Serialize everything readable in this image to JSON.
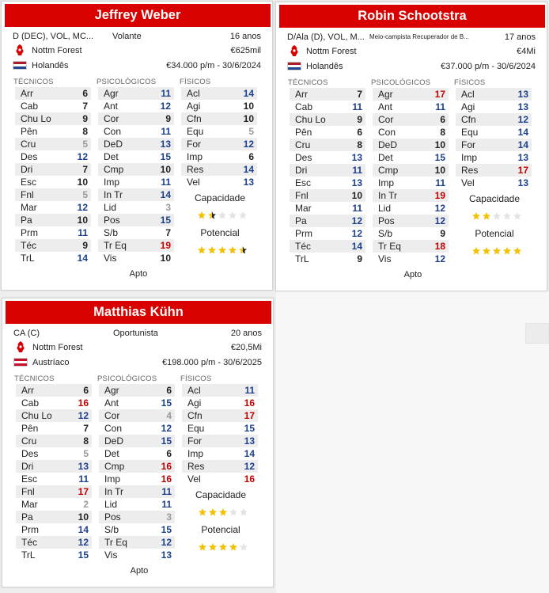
{
  "players": [
    {
      "name": "Jeffrey Weber",
      "positions": "D (DEC), VOL, MC...",
      "role": "Volante",
      "age": "16 anos",
      "club": "Nottm Forest",
      "value": "€625mil",
      "nationality": "Holandês",
      "flag": "nl",
      "contract": "€34.000 p/m - 30/6/2024",
      "group_labels": [
        "TÉCNICOS",
        "PSICOLÓGICOS",
        "FÍSICOS"
      ],
      "technical": [
        [
          "Arr",
          "6",
          "k"
        ],
        [
          "Cab",
          "7",
          "k"
        ],
        [
          "Chu Lo",
          "9",
          "k"
        ],
        [
          "Pên",
          "8",
          "k"
        ],
        [
          "Cru",
          "5",
          "g"
        ],
        [
          "Des",
          "12",
          "b"
        ],
        [
          "Dri",
          "7",
          "k"
        ],
        [
          "Esc",
          "10",
          "k"
        ],
        [
          "Fnl",
          "5",
          "g"
        ],
        [
          "Mar",
          "12",
          "b"
        ],
        [
          "Pa",
          "10",
          "k"
        ],
        [
          "Prm",
          "11",
          "b"
        ],
        [
          "Téc",
          "9",
          "k"
        ],
        [
          "TrL",
          "14",
          "b"
        ]
      ],
      "mental": [
        [
          "Agr",
          "11",
          "b"
        ],
        [
          "Ant",
          "12",
          "b"
        ],
        [
          "Cor",
          "9",
          "k"
        ],
        [
          "Con",
          "11",
          "b"
        ],
        [
          "DeD",
          "13",
          "b"
        ],
        [
          "Det",
          "15",
          "b"
        ],
        [
          "Cmp",
          "10",
          "k"
        ],
        [
          "Imp",
          "11",
          "b"
        ],
        [
          "In Tr",
          "14",
          "b"
        ],
        [
          "Lid",
          "3",
          "g"
        ],
        [
          "Pos",
          "15",
          "b"
        ],
        [
          "S/b",
          "7",
          "k"
        ],
        [
          "Tr Eq",
          "19",
          "r"
        ],
        [
          "Vis",
          "10",
          "k"
        ]
      ],
      "physical": [
        [
          "Acl",
          "14",
          "b"
        ],
        [
          "Agi",
          "10",
          "k"
        ],
        [
          "Cfn",
          "10",
          "k"
        ],
        [
          "Equ",
          "5",
          "g"
        ],
        [
          "For",
          "12",
          "b"
        ],
        [
          "Imp",
          "6",
          "k"
        ],
        [
          "Res",
          "14",
          "b"
        ],
        [
          "Vel",
          "13",
          "b"
        ]
      ],
      "ability_label": "Capacidade",
      "ability_stars": 1.5,
      "potential_label": "Potencial",
      "potential_stars": 4.5,
      "fitness": "Apto"
    },
    {
      "name": "Robin Schootstra",
      "positions": "D/Ala (D), VOL, M...",
      "role": "Meio-campista Recuperador de B...",
      "age": "17 anos",
      "club": "Nottm Forest",
      "value": "€4Mi",
      "nationality": "Holandês",
      "flag": "nl",
      "contract": "€37.000 p/m - 30/6/2024",
      "group_labels": [
        "TÉCNICOS",
        "PSICOLÓGICOS",
        "FÍSICOS"
      ],
      "technical": [
        [
          "Arr",
          "7",
          "k"
        ],
        [
          "Cab",
          "11",
          "b"
        ],
        [
          "Chu Lo",
          "9",
          "k"
        ],
        [
          "Pên",
          "6",
          "k"
        ],
        [
          "Cru",
          "8",
          "k"
        ],
        [
          "Des",
          "13",
          "b"
        ],
        [
          "Dri",
          "11",
          "b"
        ],
        [
          "Esc",
          "13",
          "b"
        ],
        [
          "Fnl",
          "10",
          "k"
        ],
        [
          "Mar",
          "11",
          "b"
        ],
        [
          "Pa",
          "12",
          "b"
        ],
        [
          "Prm",
          "12",
          "b"
        ],
        [
          "Téc",
          "14",
          "b"
        ],
        [
          "TrL",
          "9",
          "k"
        ]
      ],
      "mental": [
        [
          "Agr",
          "17",
          "r"
        ],
        [
          "Ant",
          "11",
          "b"
        ],
        [
          "Cor",
          "6",
          "k"
        ],
        [
          "Con",
          "8",
          "k"
        ],
        [
          "DeD",
          "10",
          "k"
        ],
        [
          "Det",
          "15",
          "b"
        ],
        [
          "Cmp",
          "10",
          "k"
        ],
        [
          "Imp",
          "11",
          "b"
        ],
        [
          "In Tr",
          "19",
          "r"
        ],
        [
          "Lid",
          "12",
          "b"
        ],
        [
          "Pos",
          "12",
          "b"
        ],
        [
          "S/b",
          "9",
          "k"
        ],
        [
          "Tr Eq",
          "18",
          "r"
        ],
        [
          "Vis",
          "12",
          "b"
        ]
      ],
      "physical": [
        [
          "Acl",
          "13",
          "b"
        ],
        [
          "Agi",
          "13",
          "b"
        ],
        [
          "Cfn",
          "12",
          "b"
        ],
        [
          "Equ",
          "14",
          "b"
        ],
        [
          "For",
          "14",
          "b"
        ],
        [
          "Imp",
          "13",
          "b"
        ],
        [
          "Res",
          "17",
          "r"
        ],
        [
          "Vel",
          "13",
          "b"
        ]
      ],
      "ability_label": "Capacidade",
      "ability_stars": 2,
      "potential_label": "Potencial",
      "potential_stars": 5,
      "fitness": "Apto"
    },
    {
      "name": "Matthias Kühn",
      "positions": "CA (C)",
      "role": "Oportunista",
      "age": "20 anos",
      "club": "Nottm Forest",
      "value": "€20,5Mi",
      "nationality": "Austríaco",
      "flag": "at",
      "contract": "€198.000 p/m - 30/6/2025",
      "group_labels": [
        "TÉCNICOS",
        "PSICOLÓGICOS",
        "FÍSICOS"
      ],
      "technical": [
        [
          "Arr",
          "6",
          "k"
        ],
        [
          "Cab",
          "16",
          "r"
        ],
        [
          "Chu Lo",
          "12",
          "b"
        ],
        [
          "Pên",
          "7",
          "k"
        ],
        [
          "Cru",
          "8",
          "k"
        ],
        [
          "Des",
          "5",
          "g"
        ],
        [
          "Dri",
          "13",
          "b"
        ],
        [
          "Esc",
          "11",
          "b"
        ],
        [
          "Fnl",
          "17",
          "r"
        ],
        [
          "Mar",
          "2",
          "g"
        ],
        [
          "Pa",
          "10",
          "k"
        ],
        [
          "Prm",
          "14",
          "b"
        ],
        [
          "Téc",
          "12",
          "b"
        ],
        [
          "TrL",
          "15",
          "b"
        ]
      ],
      "mental": [
        [
          "Agr",
          "6",
          "k"
        ],
        [
          "Ant",
          "15",
          "b"
        ],
        [
          "Cor",
          "4",
          "g"
        ],
        [
          "Con",
          "12",
          "b"
        ],
        [
          "DeD",
          "15",
          "b"
        ],
        [
          "Det",
          "6",
          "k"
        ],
        [
          "Cmp",
          "16",
          "r"
        ],
        [
          "Imp",
          "16",
          "r"
        ],
        [
          "In Tr",
          "11",
          "b"
        ],
        [
          "Lid",
          "11",
          "b"
        ],
        [
          "Pos",
          "3",
          "g"
        ],
        [
          "S/b",
          "15",
          "b"
        ],
        [
          "Tr Eq",
          "12",
          "b"
        ],
        [
          "Vis",
          "13",
          "b"
        ]
      ],
      "physical": [
        [
          "Acl",
          "11",
          "b"
        ],
        [
          "Agi",
          "16",
          "r"
        ],
        [
          "Cfn",
          "17",
          "r"
        ],
        [
          "Equ",
          "15",
          "b"
        ],
        [
          "For",
          "13",
          "b"
        ],
        [
          "Imp",
          "14",
          "b"
        ],
        [
          "Res",
          "12",
          "b"
        ],
        [
          "Vel",
          "16",
          "r"
        ]
      ],
      "ability_label": "Capacidade",
      "ability_stars": 3,
      "potential_label": "Potencial",
      "potential_stars": 4,
      "fitness": "Apto"
    }
  ],
  "colors": {
    "accent": "#d90000",
    "blue": "#1c3f8e",
    "red": "#c40000",
    "gray": "#999999",
    "star": "#f2c200"
  }
}
